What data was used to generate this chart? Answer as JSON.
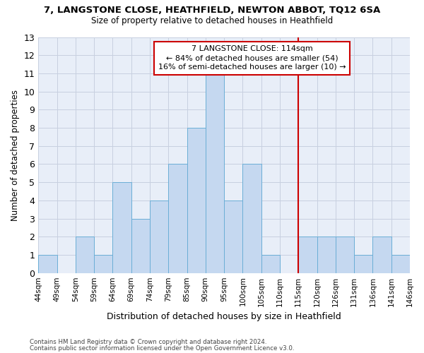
{
  "title1": "7, LANGSTONE CLOSE, HEATHFIELD, NEWTON ABBOT, TQ12 6SA",
  "title2": "Size of property relative to detached houses in Heathfield",
  "xlabel": "Distribution of detached houses by size in Heathfield",
  "ylabel": "Number of detached properties",
  "bin_labels": [
    "44sqm",
    "49sqm",
    "54sqm",
    "59sqm",
    "64sqm",
    "69sqm",
    "74sqm",
    "79sqm",
    "85sqm",
    "90sqm",
    "95sqm",
    "100sqm",
    "105sqm",
    "110sqm",
    "115sqm",
    "120sqm",
    "126sqm",
    "131sqm",
    "136sqm",
    "141sqm",
    "146sqm"
  ],
  "bar_values": [
    1,
    0,
    2,
    1,
    5,
    3,
    4,
    6,
    8,
    11,
    4,
    6,
    1,
    0,
    2,
    2,
    2,
    1,
    2,
    1
  ],
  "bar_color": "#c5d8f0",
  "bar_edgecolor": "#6baed6",
  "vline_color": "#cc0000",
  "ylim": [
    0,
    13
  ],
  "yticks": [
    0,
    1,
    2,
    3,
    4,
    5,
    6,
    7,
    8,
    9,
    10,
    11,
    12,
    13
  ],
  "annotation_text": "7 LANGSTONE CLOSE: 114sqm\n← 84% of detached houses are smaller (54)\n16% of semi-detached houses are larger (10) →",
  "annotation_box_color": "#cc0000",
  "footer1": "Contains HM Land Registry data © Crown copyright and database right 2024.",
  "footer2": "Contains public sector information licensed under the Open Government Licence v3.0.",
  "grid_color": "#c8d0e0",
  "background_color": "#e8eef8",
  "vline_bin_index": 14
}
